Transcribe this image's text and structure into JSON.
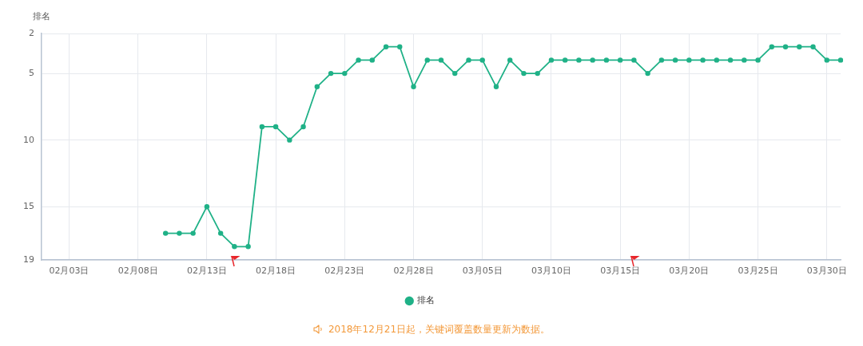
{
  "chart_data": {
    "type": "line",
    "ylabel": "排名",
    "categories": [
      null,
      null,
      "02月03日",
      null,
      null,
      null,
      null,
      "02月08日",
      null,
      null,
      null,
      null,
      "02月13日",
      null,
      null,
      null,
      null,
      "02月18日",
      null,
      null,
      null,
      null,
      "02月23日",
      null,
      null,
      null,
      null,
      "02月28日",
      null,
      null,
      null,
      null,
      "03月05日",
      null,
      null,
      null,
      null,
      "03月10日",
      null,
      null,
      null,
      null,
      "03月15日",
      null,
      null,
      null,
      null,
      "03月20日",
      null,
      null,
      null,
      null,
      "03月25日",
      null,
      null,
      null,
      null,
      "03月30日",
      null
    ],
    "series": [
      {
        "name": "排名",
        "color": "#1fb187",
        "values": [
          null,
          null,
          null,
          null,
          null,
          null,
          null,
          null,
          null,
          17,
          17,
          17,
          15,
          17,
          18,
          18,
          9,
          9,
          10,
          9,
          6,
          5,
          5,
          4,
          4,
          3,
          3,
          6,
          4,
          4,
          5,
          4,
          4,
          6,
          4,
          5,
          5,
          4,
          4,
          4,
          4,
          4,
          4,
          4,
          5,
          4,
          4,
          4,
          4,
          4,
          4,
          4,
          4,
          3,
          3,
          3,
          3,
          4,
          4
        ]
      }
    ],
    "ylim": [
      19,
      2
    ],
    "yticks": [
      2,
      5,
      10,
      15,
      19
    ],
    "grid": true,
    "legend": "bottom",
    "marker": "circle",
    "line_style": "solid",
    "annotations": [
      "2018年12月21日起，关键词覆盖数量更新为数据。"
    ]
  }
}
